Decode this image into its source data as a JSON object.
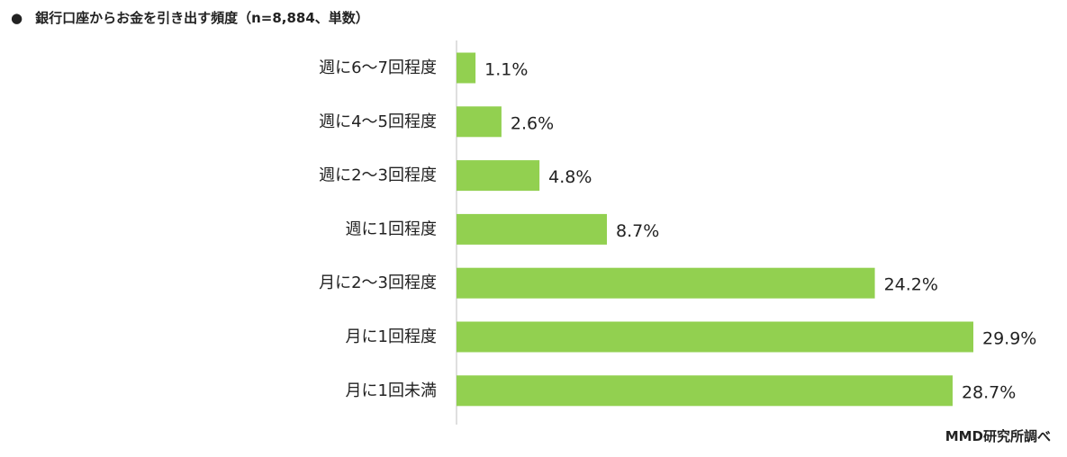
{
  "title": "銀行口座からお金を引き出す頻度（n=8,884、単数）",
  "bullet": "●",
  "source": "MMD研究所調べ",
  "colors": {
    "bar": "#92d050",
    "axis": "#bfbfbf"
  },
  "chart_data": {
    "type": "bar",
    "orientation": "horizontal",
    "title": "銀行口座からお金を引き出す頻度（n=8,884、単数）",
    "categories": [
      "週に6～7回程度",
      "週に4～5回程度",
      "週に2～3回程度",
      "週に1回程度",
      "月に2～3回程度",
      "月に1回程度",
      "月に1回未満"
    ],
    "values": [
      1.1,
      2.6,
      4.8,
      8.7,
      24.2,
      29.9,
      28.7
    ],
    "value_labels": [
      "1.1%",
      "2.6%",
      "4.8%",
      "8.7%",
      "24.2%",
      "29.9%",
      "28.7%"
    ],
    "unit": "%",
    "xlim": [
      0,
      30
    ],
    "grid": false,
    "legend": "none"
  }
}
